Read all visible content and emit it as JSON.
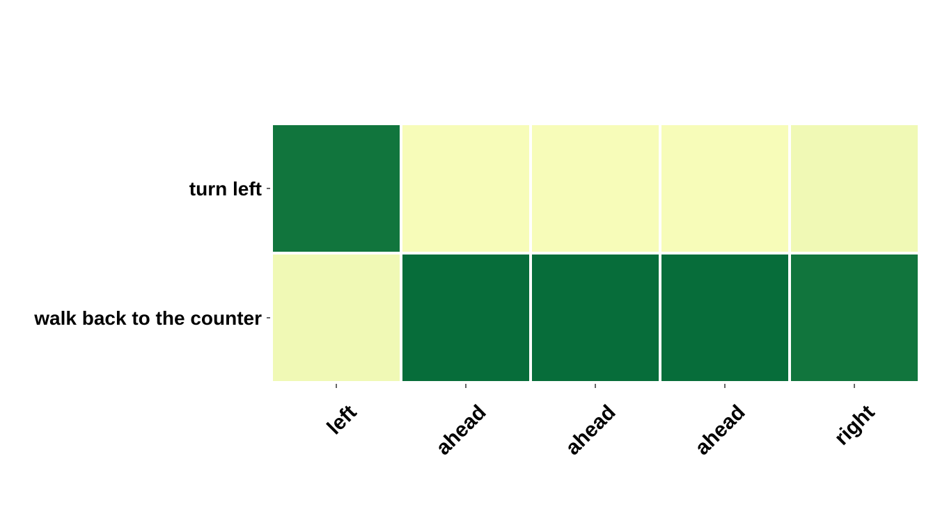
{
  "chart_data": {
    "type": "heatmap",
    "title": "",
    "xlabel": "",
    "ylabel": "",
    "x_categories": [
      "left",
      "ahead",
      "ahead",
      "ahead",
      "right"
    ],
    "y_categories": [
      "turn left",
      "walk back to the counter"
    ],
    "values": [
      [
        0.85,
        0.02,
        0.02,
        0.02,
        0.12
      ],
      [
        0.12,
        0.95,
        0.95,
        0.95,
        0.85
      ]
    ],
    "value_range": [
      0,
      1
    ],
    "colormap": "YlGn",
    "colors": {
      "low": "#f5fbb8",
      "mid_low": "#e8f6b0",
      "high": "#11753d",
      "max": "#026938",
      "cell_border": "#ffffff"
    },
    "grid": false,
    "legend": "none"
  }
}
